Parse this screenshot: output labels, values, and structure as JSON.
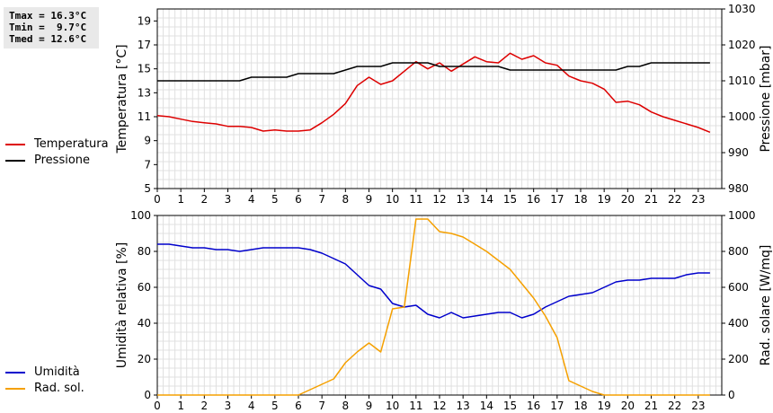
{
  "stats": {
    "tmax": "Tmax = 16.3°C",
    "tmin": "Tmin =  9.7°C",
    "tmed": "Tmed = 12.6°C"
  },
  "legend": {
    "temperatura": "Temperatura",
    "pressione": "Pressione",
    "umidita": "Umidità",
    "rad_sol": "Rad. sol."
  },
  "colors": {
    "temperatura": "#dd0000",
    "pressione": "#000000",
    "umidita": "#0000cc",
    "rad_sol": "#f5a000"
  },
  "chart_data": [
    {
      "type": "line",
      "xlabel": "",
      "ylabel": "Temperatura [°C]",
      "y2label": "Pressione [mbar]",
      "xlim": [
        0,
        24
      ],
      "xticks": [
        0,
        1,
        2,
        3,
        4,
        5,
        6,
        7,
        8,
        9,
        10,
        11,
        12,
        13,
        14,
        15,
        16,
        17,
        18,
        19,
        20,
        21,
        22,
        23
      ],
      "ylim": [
        5,
        20
      ],
      "yticks": [
        5,
        7,
        9,
        11,
        13,
        15,
        17,
        19
      ],
      "y2lim": [
        980,
        1030
      ],
      "y2ticks": [
        980,
        990,
        1000,
        1010,
        1020,
        1030
      ],
      "grid": true,
      "legend_position": "left",
      "series": [
        {
          "name": "Temperatura",
          "axis": "left",
          "x": [
            0,
            0.5,
            1,
            1.5,
            2,
            2.5,
            3,
            3.5,
            4,
            4.5,
            5,
            5.5,
            6,
            6.5,
            7,
            7.5,
            8,
            8.5,
            9,
            9.5,
            10,
            10.5,
            11,
            11.5,
            12,
            12.5,
            13,
            13.5,
            14,
            14.5,
            15,
            15.5,
            16,
            16.5,
            17,
            17.5,
            18,
            18.5,
            19,
            19.5,
            20,
            20.5,
            21,
            21.5,
            22,
            22.5,
            23,
            23.5
          ],
          "y": [
            11.1,
            11.0,
            10.8,
            10.6,
            10.5,
            10.4,
            10.2,
            10.2,
            10.1,
            9.8,
            9.9,
            9.8,
            9.8,
            9.9,
            10.5,
            11.2,
            12.1,
            13.6,
            14.3,
            13.7,
            14.0,
            14.8,
            15.6,
            15.0,
            15.5,
            14.8,
            15.4,
            16.0,
            15.6,
            15.5,
            16.3,
            15.8,
            16.1,
            15.5,
            15.3,
            14.4,
            14.0,
            13.8,
            13.3,
            12.2,
            12.3,
            12.0,
            11.4,
            11.0,
            10.7,
            10.4,
            10.1,
            9.7
          ]
        },
        {
          "name": "Pressione",
          "axis": "right",
          "x": [
            0,
            0.5,
            1,
            1.5,
            2,
            2.5,
            3,
            3.5,
            4,
            4.5,
            5,
            5.5,
            6,
            6.5,
            7,
            7.5,
            8,
            8.5,
            9,
            9.5,
            10,
            10.5,
            11,
            11.5,
            12,
            12.5,
            13,
            13.5,
            14,
            14.5,
            15,
            15.5,
            16,
            16.5,
            17,
            17.5,
            18,
            18.5,
            19,
            19.5,
            20,
            20.5,
            21,
            21.5,
            22,
            22.5,
            23,
            23.5
          ],
          "y": [
            1010,
            1010,
            1010,
            1010,
            1010,
            1010,
            1010,
            1010,
            1011,
            1011,
            1011,
            1011,
            1012,
            1012,
            1012,
            1012,
            1013,
            1014,
            1014,
            1014,
            1015,
            1015,
            1015,
            1015,
            1014,
            1014,
            1014,
            1014,
            1014,
            1014,
            1013,
            1013,
            1013,
            1013,
            1013,
            1013,
            1013,
            1013,
            1013,
            1013,
            1014,
            1014,
            1015,
            1015,
            1015,
            1015,
            1015,
            1015
          ]
        }
      ]
    },
    {
      "type": "line",
      "xlabel": "",
      "ylabel": "Umidità relativa [%]",
      "y2label": "Rad. solare [W/mq]",
      "xlim": [
        0,
        24
      ],
      "xticks": [
        0,
        1,
        2,
        3,
        4,
        5,
        6,
        7,
        8,
        9,
        10,
        11,
        12,
        13,
        14,
        15,
        16,
        17,
        18,
        19,
        20,
        21,
        22,
        23
      ],
      "ylim": [
        0,
        100
      ],
      "yticks": [
        0,
        20,
        40,
        60,
        80,
        100
      ],
      "y2lim": [
        0,
        1000
      ],
      "y2ticks": [
        0,
        200,
        400,
        600,
        800,
        1000
      ],
      "grid": true,
      "legend_position": "left",
      "series": [
        {
          "name": "Umidità",
          "axis": "left",
          "x": [
            0,
            0.5,
            1,
            1.5,
            2,
            2.5,
            3,
            3.5,
            4,
            4.5,
            5,
            5.5,
            6,
            6.5,
            7,
            7.5,
            8,
            8.5,
            9,
            9.5,
            10,
            10.5,
            11,
            11.5,
            12,
            12.5,
            13,
            13.5,
            14,
            14.5,
            15,
            15.5,
            16,
            16.5,
            17,
            17.5,
            18,
            18.5,
            19,
            19.5,
            20,
            20.5,
            21,
            21.5,
            22,
            22.5,
            23,
            23.5
          ],
          "y": [
            84,
            84,
            83,
            82,
            82,
            81,
            81,
            80,
            81,
            82,
            82,
            82,
            82,
            81,
            79,
            76,
            73,
            67,
            61,
            59,
            51,
            49,
            50,
            45,
            43,
            46,
            43,
            44,
            45,
            46,
            46,
            43,
            45,
            49,
            52,
            55,
            56,
            57,
            60,
            63,
            64,
            64,
            65,
            65,
            65,
            67,
            68,
            68
          ]
        },
        {
          "name": "Rad. sol.",
          "axis": "right",
          "x": [
            0,
            0.5,
            1,
            1.5,
            2,
            2.5,
            3,
            3.5,
            4,
            4.5,
            5,
            5.5,
            6,
            6.5,
            7,
            7.5,
            8,
            8.5,
            9,
            9.5,
            10,
            10.5,
            11,
            11.5,
            12,
            12.5,
            13,
            13.5,
            14,
            14.5,
            15,
            15.5,
            16,
            16.5,
            17,
            17.5,
            18,
            18.5,
            19,
            19.5,
            20,
            20.5,
            21,
            21.5,
            22,
            22.5,
            23,
            23.5
          ],
          "y": [
            0,
            0,
            0,
            0,
            0,
            0,
            0,
            0,
            0,
            0,
            0,
            0,
            0,
            30,
            60,
            90,
            180,
            240,
            290,
            240,
            480,
            490,
            980,
            980,
            910,
            900,
            880,
            840,
            800,
            750,
            700,
            620,
            540,
            440,
            320,
            80,
            50,
            20,
            0,
            0,
            0,
            0,
            0,
            0,
            0,
            0,
            0,
            0
          ]
        }
      ]
    }
  ]
}
